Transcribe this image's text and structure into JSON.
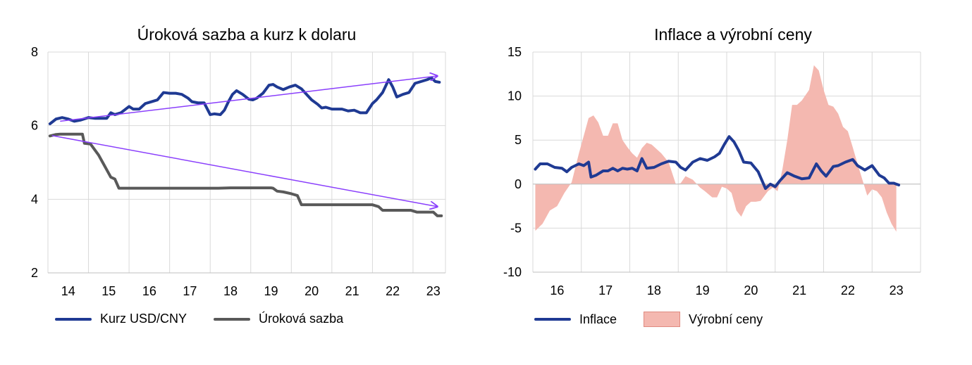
{
  "chart_data": [
    {
      "type": "line",
      "title": "Úroková sazba a kurz k dolaru",
      "x_tick_labels": [
        "14",
        "15",
        "16",
        "17",
        "18",
        "19",
        "20",
        "21",
        "22",
        "23"
      ],
      "y_tick_labels": [
        "2",
        "4",
        "6",
        "8"
      ],
      "ylim": [
        2,
        8
      ],
      "xlim": [
        2013.5,
        2023.3
      ],
      "grid": "vertical and horizontal",
      "legend_position": "bottom",
      "series": [
        {
          "name": "Kurz USD/CNY",
          "color": "#1f3a93",
          "x": [
            2013.55,
            2013.7,
            2013.85,
            2014.0,
            2014.15,
            2014.3,
            2014.5,
            2014.65,
            2014.8,
            2014.95,
            2015.05,
            2015.15,
            2015.3,
            2015.5,
            2015.6,
            2015.75,
            2015.9,
            2016.05,
            2016.2,
            2016.35,
            2016.5,
            2016.65,
            2016.8,
            2016.95,
            2017.05,
            2017.2,
            2017.35,
            2017.5,
            2017.6,
            2017.75,
            2017.85,
            2017.95,
            2018.05,
            2018.15,
            2018.3,
            2018.45,
            2018.55,
            2018.65,
            2018.8,
            2018.95,
            2019.05,
            2019.15,
            2019.3,
            2019.45,
            2019.6,
            2019.75,
            2019.9,
            2020.0,
            2020.15,
            2020.25,
            2020.35,
            2020.5,
            2020.6,
            2020.75,
            2020.9,
            2021.05,
            2021.2,
            2021.35,
            2021.5,
            2021.6,
            2021.75,
            2021.9,
            2022.0,
            2022.1,
            2022.25,
            2022.4,
            2022.55,
            2022.7,
            2022.85,
            2022.95,
            2023.05,
            2023.15
          ],
          "values": [
            6.05,
            6.18,
            6.22,
            6.18,
            6.12,
            6.15,
            6.22,
            6.2,
            6.2,
            6.2,
            6.35,
            6.3,
            6.35,
            6.52,
            6.45,
            6.45,
            6.6,
            6.65,
            6.7,
            6.9,
            6.88,
            6.88,
            6.85,
            6.75,
            6.65,
            6.62,
            6.62,
            6.3,
            6.32,
            6.3,
            6.42,
            6.65,
            6.85,
            6.95,
            6.85,
            6.72,
            6.7,
            6.75,
            6.88,
            7.1,
            7.12,
            7.05,
            6.98,
            7.05,
            7.1,
            7.0,
            6.82,
            6.7,
            6.58,
            6.48,
            6.5,
            6.45,
            6.45,
            6.45,
            6.4,
            6.42,
            6.35,
            6.35,
            6.6,
            6.7,
            6.9,
            7.25,
            7.05,
            6.78,
            6.85,
            6.9,
            7.15,
            7.2,
            7.25,
            7.3,
            7.2,
            7.18
          ]
        },
        {
          "name": "Úroková sazba",
          "color": "#595959",
          "x": [
            2013.55,
            2013.7,
            2013.8,
            2014.0,
            2014.35,
            2014.4,
            2014.55,
            2014.65,
            2014.75,
            2014.85,
            2014.95,
            2015.05,
            2015.15,
            2015.25,
            2015.5,
            2016.0,
            2017.0,
            2017.7,
            2018.0,
            2019.0,
            2019.05,
            2019.15,
            2019.3,
            2019.5,
            2019.65,
            2019.75,
            2020.0,
            2020.5,
            2021.0,
            2021.3,
            2021.5,
            2021.65,
            2021.75,
            2022.0,
            2022.3,
            2022.45,
            2022.6,
            2022.8,
            2023.0,
            2023.1,
            2023.2
          ],
          "values": [
            5.72,
            5.76,
            5.77,
            5.77,
            5.77,
            5.52,
            5.5,
            5.35,
            5.2,
            5.0,
            4.8,
            4.6,
            4.55,
            4.3,
            4.3,
            4.3,
            4.3,
            4.3,
            4.31,
            4.31,
            4.3,
            4.22,
            4.2,
            4.15,
            4.1,
            3.85,
            3.85,
            3.85,
            3.85,
            3.85,
            3.85,
            3.8,
            3.7,
            3.7,
            3.7,
            3.7,
            3.65,
            3.65,
            3.65,
            3.55,
            3.55
          ]
        }
      ],
      "trend_arrows": [
        {
          "from": [
            2013.8,
            6.12
          ],
          "to": [
            2023.1,
            7.35
          ],
          "color": "#8a3ffc"
        },
        {
          "from": [
            2013.6,
            5.73
          ],
          "to": [
            2023.1,
            3.8
          ],
          "color": "#8a3ffc"
        }
      ]
    },
    {
      "type": "line",
      "title": "Inflace a výrobní ceny",
      "x_tick_labels": [
        "16",
        "17",
        "18",
        "19",
        "20",
        "21",
        "22",
        "23"
      ],
      "y_tick_labels": [
        "15",
        "10",
        "5",
        "0",
        "-5",
        "-10"
      ],
      "ylim": [
        -10,
        15
      ],
      "xlim": [
        2015.5,
        2023.5
      ],
      "grid": "vertical and horizontal",
      "legend_position": "bottom",
      "series": [
        {
          "name": "Inflace",
          "type": "line",
          "color": "#1f3a93",
          "x": [
            2015.55,
            2015.65,
            2015.8,
            2015.95,
            2016.1,
            2016.2,
            2016.3,
            2016.45,
            2016.55,
            2016.65,
            2016.7,
            2016.8,
            2016.95,
            2017.05,
            2017.15,
            2017.25,
            2017.35,
            2017.45,
            2017.55,
            2017.65,
            2017.75,
            2017.85,
            2018.0,
            2018.15,
            2018.3,
            2018.45,
            2018.55,
            2018.65,
            2018.8,
            2018.95,
            2019.1,
            2019.25,
            2019.35,
            2019.45,
            2019.55,
            2019.65,
            2019.75,
            2019.85,
            2020.0,
            2020.15,
            2020.3,
            2020.4,
            2020.5,
            2020.6,
            2020.75,
            2020.9,
            2021.05,
            2021.2,
            2021.35,
            2021.45,
            2021.55,
            2021.7,
            2021.8,
            2021.95,
            2022.1,
            2022.2,
            2022.35,
            2022.5,
            2022.65,
            2022.75,
            2022.85,
            2022.95,
            2023.05
          ],
          "values": [
            1.7,
            2.3,
            2.3,
            1.9,
            1.8,
            1.4,
            1.9,
            2.3,
            2.1,
            2.5,
            0.8,
            1.0,
            1.5,
            1.5,
            1.8,
            1.5,
            1.8,
            1.7,
            1.8,
            1.5,
            2.9,
            1.8,
            1.9,
            2.3,
            2.6,
            2.5,
            1.9,
            1.6,
            2.5,
            2.9,
            2.7,
            3.1,
            3.5,
            4.5,
            5.4,
            4.8,
            3.8,
            2.5,
            2.4,
            1.4,
            -0.5,
            0.0,
            -0.3,
            0.4,
            1.3,
            0.9,
            0.6,
            0.7,
            2.3,
            1.5,
            0.9,
            2.0,
            2.1,
            2.5,
            2.8,
            2.1,
            1.6,
            2.1,
            1.0,
            0.7,
            0.1,
            0.1,
            -0.1
          ]
        },
        {
          "name": "Výrobní ceny",
          "type": "area",
          "color": "#f4b8b0",
          "x": [
            2015.55,
            2015.7,
            2015.85,
            2016.0,
            2016.15,
            2016.3,
            2016.45,
            2016.55,
            2016.65,
            2016.75,
            2016.85,
            2016.95,
            2017.05,
            2017.15,
            2017.25,
            2017.35,
            2017.45,
            2017.55,
            2017.65,
            2017.75,
            2017.85,
            2017.95,
            2018.05,
            2018.15,
            2018.3,
            2018.45,
            2018.55,
            2018.65,
            2018.8,
            2018.95,
            2019.05,
            2019.2,
            2019.3,
            2019.4,
            2019.5,
            2019.6,
            2019.7,
            2019.8,
            2019.9,
            2020.0,
            2020.1,
            2020.2,
            2020.35,
            2020.45,
            2020.55,
            2020.65,
            2020.75,
            2020.85,
            2020.95,
            2021.05,
            2021.2,
            2021.3,
            2021.4,
            2021.5,
            2021.6,
            2021.7,
            2021.8,
            2021.9,
            2022.0,
            2022.1,
            2022.2,
            2022.3,
            2022.4,
            2022.5,
            2022.6,
            2022.7,
            2022.8,
            2022.9,
            2023.0
          ],
          "values": [
            -5.3,
            -4.5,
            -3.0,
            -2.5,
            -1.0,
            0.2,
            3.5,
            5.5,
            7.5,
            7.8,
            7.0,
            5.5,
            5.5,
            6.9,
            6.9,
            5.0,
            4.2,
            3.5,
            3.0,
            4.1,
            4.7,
            4.5,
            4.0,
            3.5,
            2.5,
            0.0,
            0.1,
            0.9,
            0.5,
            -0.4,
            -0.8,
            -1.5,
            -1.5,
            -0.3,
            -0.5,
            -1.0,
            -3.0,
            -3.7,
            -2.5,
            -2.0,
            -2.0,
            -1.9,
            -0.8,
            -0.4,
            -0.8,
            1.7,
            5.0,
            9.0,
            9.0,
            9.5,
            10.7,
            13.5,
            12.9,
            10.7,
            9.0,
            8.8,
            8.0,
            6.5,
            6.0,
            4.2,
            2.3,
            0.5,
            -1.3,
            -0.6,
            -0.8,
            -1.5,
            -3.2,
            -4.5,
            -5.4
          ]
        }
      ]
    }
  ]
}
